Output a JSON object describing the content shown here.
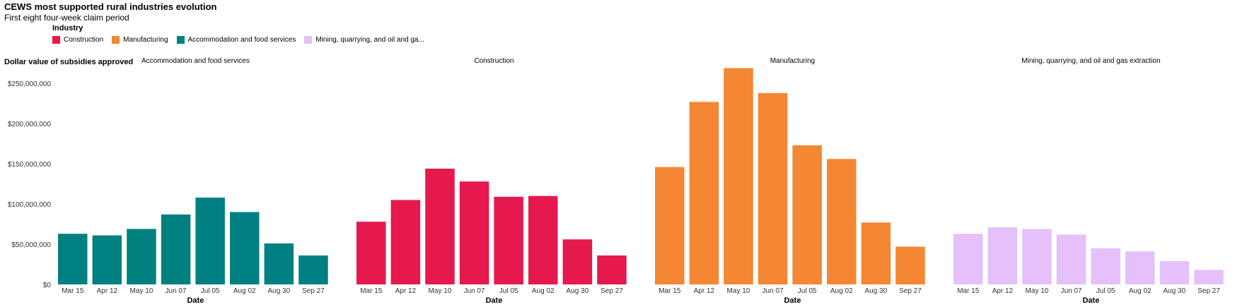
{
  "header": {
    "title": "CEWS most supported rural industries evolution",
    "subtitle": "First eight four-week claim period"
  },
  "legend": {
    "title": "Industry",
    "items": [
      {
        "label": "Construction",
        "color": "#e5194d"
      },
      {
        "label": "Manufacturing",
        "color": "#f58634"
      },
      {
        "label": "Accommodation and food services",
        "color": "#008080"
      },
      {
        "label": "Mining, quarrying, and oil and ga...",
        "color": "#e5c0fa"
      }
    ]
  },
  "chart_data": {
    "type": "bar",
    "ylabel": "Dollar value of subsidies approved",
    "xlabel": "Date",
    "ylim": [
      0,
      280000000
    ],
    "yticks": [
      0,
      50000000,
      100000000,
      150000000,
      200000000,
      250000000
    ],
    "ytick_labels": [
      "$0",
      "$50,000,000",
      "$100,000,000",
      "$150,000,000",
      "$200,000,000",
      "$250,000,000"
    ],
    "categories": [
      "Mar 15",
      "Apr 12",
      "May 10",
      "Jun 07",
      "Jul 05",
      "Aug 02",
      "Aug 30",
      "Sep 27"
    ],
    "panels": [
      {
        "name": "Accommodation and food services",
        "color": "#008080",
        "values": [
          63000000,
          61000000,
          69000000,
          87000000,
          108000000,
          90000000,
          51000000,
          36000000
        ]
      },
      {
        "name": "Construction",
        "color": "#e5194d",
        "values": [
          78000000,
          105000000,
          144000000,
          128000000,
          109000000,
          110000000,
          56000000,
          36000000
        ]
      },
      {
        "name": "Manufacturing",
        "color": "#f58634",
        "values": [
          146000000,
          227000000,
          269000000,
          238000000,
          173000000,
          156000000,
          77000000,
          47000000
        ]
      },
      {
        "name": "Mining, quarrying, and oil and gas extraction",
        "color": "#e5c0fa",
        "values": [
          63000000,
          71000000,
          69000000,
          62000000,
          45000000,
          41000000,
          29000000,
          18000000
        ]
      }
    ]
  }
}
